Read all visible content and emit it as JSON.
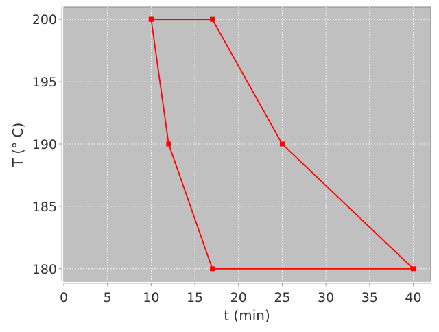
{
  "chart_data": {
    "type": "line",
    "title": "",
    "xlabel": "t (min)",
    "ylabel": "T (° C)",
    "xlim": [
      0,
      42
    ],
    "ylim": [
      179,
      201
    ],
    "xticks": [
      0,
      5,
      10,
      15,
      20,
      25,
      30,
      35,
      40
    ],
    "yticks": [
      180,
      185,
      190,
      195,
      200
    ],
    "grid": true,
    "series": [
      {
        "x": [
          10,
          17,
          25,
          40,
          17,
          12,
          10
        ],
        "y": [
          200,
          200,
          190,
          180,
          180,
          190,
          200
        ],
        "color": "#ff0000",
        "marker": "square"
      }
    ],
    "colors": {
      "plot_background": "#c0c0c0",
      "grid": "#ffffff",
      "axis": "#999999"
    }
  }
}
